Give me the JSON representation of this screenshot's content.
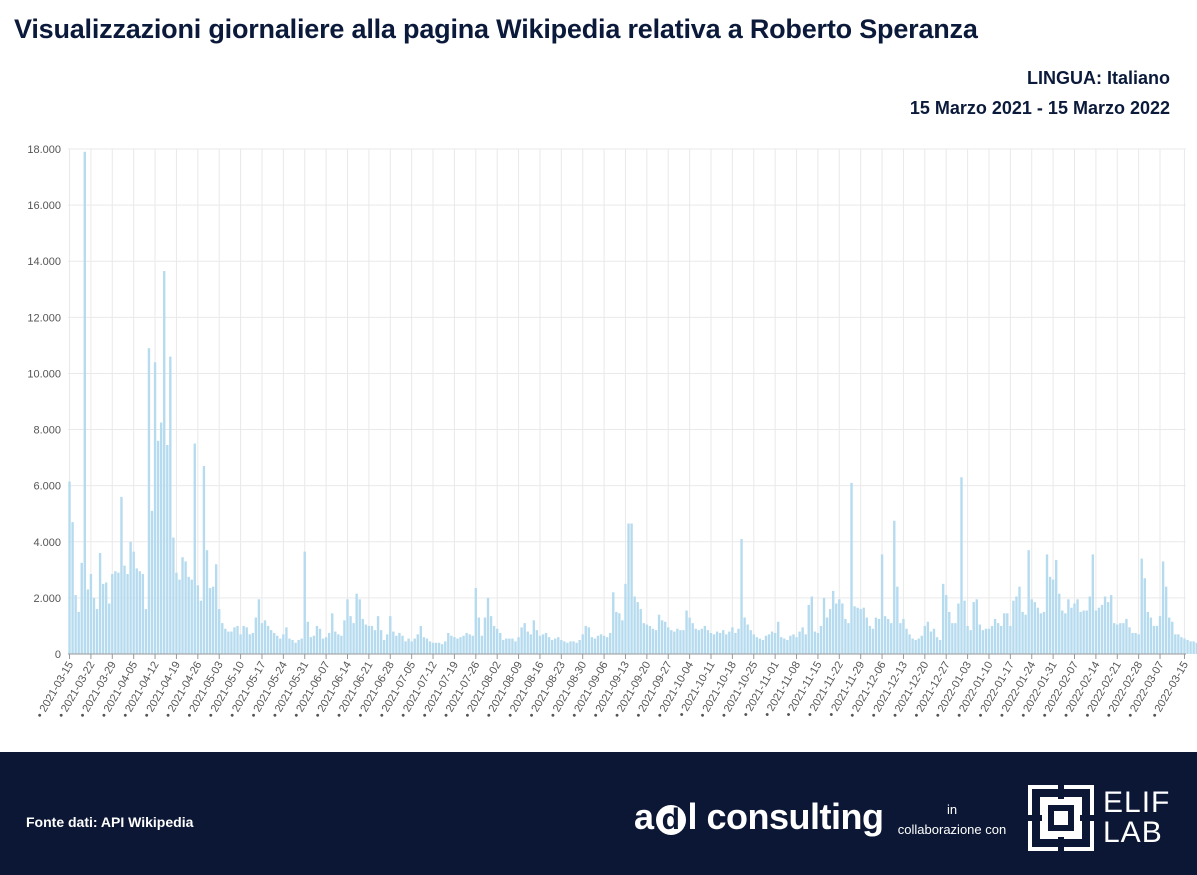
{
  "title": "Visualizzazioni giornaliere alla pagina Wikipedia relativa a  Roberto Speranza",
  "language_line": "LINGUA: Italiano",
  "date_range": "15 Marzo 2021 - 15 Marzo 2022",
  "footer": {
    "source": "Fonte dati:  API Wikipedia",
    "adl_a": "a",
    "adl_d": "d",
    "adl_rest": "l consulting",
    "collab_line1": "in",
    "collab_line2": "collaborazione con",
    "elif_line1": "ELIF",
    "elif_line2": "LAB"
  },
  "colors": {
    "bar": "#b6dbef",
    "grid": "#e9e9e9",
    "axis": "#999999",
    "footer_bg": "#0b1734",
    "title": "#0b1a3a"
  },
  "chart_data": {
    "type": "bar",
    "x_start": "2021-03-15",
    "x_end": "2022-03-15",
    "ylim": [
      0,
      18000
    ],
    "yticks": [
      0,
      2000,
      4000,
      6000,
      8000,
      10000,
      12000,
      14000,
      16000,
      18000
    ],
    "ytick_labels": [
      "0",
      "2.000",
      "4.000",
      "6.000",
      "8.000",
      "10.000",
      "12.000",
      "14.000",
      "16.000",
      "18.000"
    ],
    "xtick_labels": [
      "2021-03-15",
      "2021-03-22",
      "2021-03-29",
      "2021-04-05",
      "2021-04-12",
      "2021-04-19",
      "2021-04-26",
      "2021-05-03",
      "2021-05-10",
      "2021-05-17",
      "2021-05-24",
      "2021-05-31",
      "2021-06-07",
      "2021-06-14",
      "2021-06-21",
      "2021-06-28",
      "2021-07-05",
      "2021-07-12",
      "2021-07-19",
      "2021-07-26",
      "2021-08-02",
      "2021-08-09",
      "2021-08-16",
      "2021-08-23",
      "2021-08-30",
      "2021-09-06",
      "2021-09-13",
      "2021-09-20",
      "2021-09-27",
      "2021-10-04",
      "2021-10-11",
      "2021-10-18",
      "2021-10-25",
      "2021-11-01",
      "2021-11-08",
      "2021-11-15",
      "2021-11-22",
      "2021-11-29",
      "2021-12-06",
      "2021-12-13",
      "2021-12-20",
      "2021-12-27",
      "2022-01-03",
      "2022-01-10",
      "2022-01-17",
      "2022-01-24",
      "2022-01-31",
      "2022-02-07",
      "2022-02-14",
      "2022-02-21",
      "2022-02-28",
      "2022-03-07",
      "2022-03-15"
    ],
    "values": [
      6150,
      4700,
      2100,
      1500,
      3250,
      17900,
      2300,
      2850,
      2000,
      1600,
      3600,
      2500,
      2550,
      1800,
      2850,
      2950,
      2900,
      5600,
      3150,
      2850,
      4000,
      3650,
      3050,
      2950,
      2850,
      1600,
      10900,
      5100,
      10400,
      7600,
      8250,
      13650,
      7450,
      10600,
      4150,
      2900,
      2650,
      3450,
      3300,
      2750,
      2650,
      7500,
      2450,
      1900,
      6700,
      3700,
      2350,
      2400,
      3200,
      1600,
      1100,
      900,
      800,
      800,
      950,
      1000,
      700,
      1000,
      950,
      700,
      750,
      1300,
      1950,
      1100,
      1200,
      1000,
      850,
      750,
      650,
      550,
      700,
      950,
      550,
      500,
      400,
      500,
      550,
      3650,
      1150,
      600,
      650,
      1000,
      900,
      550,
      600,
      750,
      1450,
      800,
      700,
      650,
      1200,
      1950,
      1350,
      1100,
      2150,
      1950,
      1250,
      1050,
      1000,
      1000,
      850,
      1350,
      850,
      500,
      700,
      1350,
      800,
      650,
      750,
      650,
      450,
      550,
      450,
      550,
      700,
      1000,
      600,
      550,
      450,
      400,
      400,
      400,
      350,
      450,
      750,
      650,
      600,
      550,
      600,
      650,
      750,
      700,
      650,
      2350,
      1300,
      650,
      1300,
      2000,
      1350,
      1000,
      900,
      750,
      500,
      550,
      550,
      550,
      450,
      600,
      950,
      1100,
      800,
      700,
      1200,
      850,
      650,
      700,
      750,
      600,
      500,
      550,
      600,
      500,
      450,
      400,
      450,
      450,
      400,
      500,
      700,
      1000,
      950,
      600,
      550,
      650,
      700,
      650,
      600,
      750,
      2200,
      1500,
      1450,
      1200,
      2500,
      4650,
      4650,
      2050,
      1850,
      1600,
      1100,
      1050,
      1000,
      900,
      850,
      1400,
      1200,
      1150,
      950,
      850,
      800,
      900,
      850,
      850,
      1550,
      1300,
      1100,
      900,
      850,
      900,
      1000,
      850,
      750,
      700,
      800,
      750,
      850,
      700,
      800,
      950,
      750,
      900,
      4100,
      1300,
      1050,
      850,
      700,
      600,
      550,
      500,
      650,
      700,
      800,
      750,
      1150,
      600,
      550,
      500,
      650,
      700,
      600,
      800,
      950,
      700,
      1750,
      2050,
      800,
      750,
      1000,
      2000,
      1300,
      1600,
      2250,
      1800,
      1950,
      1800,
      1250,
      1100,
      6100,
      1700,
      1650,
      1600,
      1650,
      1300,
      1000,
      900,
      1300,
      1250,
      3550,
      1350,
      1250,
      1100,
      4750,
      2400,
      1100,
      1250,
      900,
      700,
      550,
      500,
      550,
      650,
      1000,
      1150,
      800,
      900,
      600,
      500,
      2500,
      2100,
      1500,
      1100,
      1100,
      1800,
      6300,
      1900,
      1000,
      850,
      1850,
      1950,
      1050,
      850,
      900,
      900,
      1000,
      1250,
      1100,
      1000,
      1450,
      1450,
      1000,
      1900,
      2050,
      2400,
      1500,
      1400,
      3700,
      1950,
      1850,
      1650,
      1450,
      1500,
      3550,
      2750,
      2650,
      3350,
      2150,
      1550,
      1450,
      1950,
      1650,
      1800,
      1950,
      1500,
      1550,
      1550,
      2050,
      3550,
      1550,
      1650,
      1750,
      2050,
      1850,
      2100,
      1100,
      1050,
      1100,
      1100,
      1250,
      950,
      750,
      750,
      700,
      3400,
      2700,
      1500,
      1300,
      1000,
      1000,
      1350,
      3300,
      2400,
      1300,
      1150,
      700,
      700,
      600,
      550,
      500,
      450,
      450,
      400,
      500,
      450,
      550,
      600,
      700,
      500,
      400,
      350,
      350,
      350,
      400,
      300
    ]
  }
}
